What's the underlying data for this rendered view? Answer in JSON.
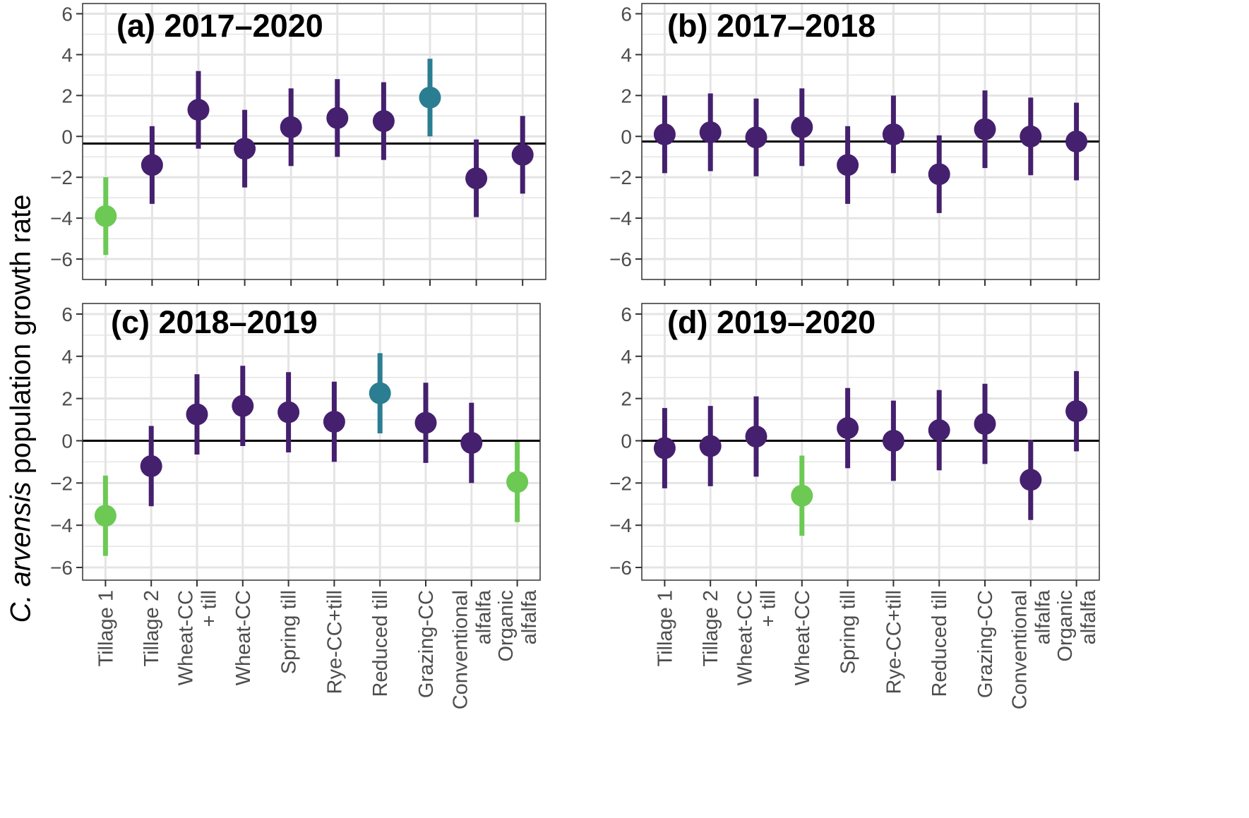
{
  "figure": {
    "ylabel_species": "C. arvensis",
    "ylabel_rest": " population growth rate"
  },
  "colors": {
    "dark_purple": "#45206e",
    "teal": "#2b7d92",
    "light_green": "#6cc954",
    "grid": "#e4e4e4",
    "frame": "#333333",
    "zero_line": "#000000"
  },
  "chart_data": [
    {
      "id": "a",
      "type": "scatter",
      "title": "(a) 2017–2020",
      "xlabel": "",
      "ylabel": "C. arvensis population growth rate",
      "ylim": [
        -7,
        6.5
      ],
      "yticks": [
        -6,
        -4,
        -2,
        0,
        2,
        4,
        6
      ],
      "show_x_labels": false,
      "reference_line": -0.35,
      "categories": [
        "Tillage 1",
        "Tillage 2",
        "Wheat-CC + till",
        "Wheat-CC",
        "Spring till",
        "Rye-CC+till",
        "Reduced till",
        "Grazing-CC",
        "Conventional alfalfa",
        "Organic alfalfa"
      ],
      "points": [
        {
          "category": "Tillage 1",
          "y": -3.9,
          "lo": -5.8,
          "hi": -2.0,
          "color": "light_green"
        },
        {
          "category": "Tillage 2",
          "y": -1.4,
          "lo": -3.3,
          "hi": 0.5,
          "color": "dark_purple"
        },
        {
          "category": "Wheat-CC + till",
          "y": 1.3,
          "lo": -0.6,
          "hi": 3.2,
          "color": "dark_purple"
        },
        {
          "category": "Wheat-CC",
          "y": -0.6,
          "lo": -2.5,
          "hi": 1.3,
          "color": "dark_purple"
        },
        {
          "category": "Spring till",
          "y": 0.45,
          "lo": -1.45,
          "hi": 2.35,
          "color": "dark_purple"
        },
        {
          "category": "Rye-CC+till",
          "y": 0.9,
          "lo": -1.0,
          "hi": 2.8,
          "color": "dark_purple"
        },
        {
          "category": "Reduced till",
          "y": 0.75,
          "lo": -1.15,
          "hi": 2.65,
          "color": "dark_purple"
        },
        {
          "category": "Grazing-CC",
          "y": 1.9,
          "lo": 0.0,
          "hi": 3.8,
          "color": "teal"
        },
        {
          "category": "Conventional alfalfa",
          "y": -2.05,
          "lo": -3.95,
          "hi": -0.15,
          "color": "dark_purple"
        },
        {
          "category": "Organic alfalfa",
          "y": -0.9,
          "lo": -2.8,
          "hi": 1.0,
          "color": "dark_purple"
        }
      ]
    },
    {
      "id": "b",
      "type": "scatter",
      "title": "(b) 2017–2018",
      "xlabel": "",
      "ylabel": "",
      "ylim": [
        -7,
        6.5
      ],
      "yticks": [
        -6,
        -4,
        -2,
        0,
        2,
        4,
        6
      ],
      "show_x_labels": false,
      "reference_line": -0.25,
      "categories": [
        "Tillage 1",
        "Tillage 2",
        "Wheat-CC + till",
        "Wheat-CC",
        "Spring till",
        "Rye-CC+till",
        "Reduced till",
        "Grazing-CC",
        "Conventional alfalfa",
        "Organic alfalfa"
      ],
      "points": [
        {
          "category": "Tillage 1",
          "y": 0.1,
          "lo": -1.8,
          "hi": 2.0,
          "color": "dark_purple"
        },
        {
          "category": "Tillage 2",
          "y": 0.2,
          "lo": -1.7,
          "hi": 2.1,
          "color": "dark_purple"
        },
        {
          "category": "Wheat-CC + till",
          "y": -0.05,
          "lo": -1.95,
          "hi": 1.85,
          "color": "dark_purple"
        },
        {
          "category": "Wheat-CC",
          "y": 0.45,
          "lo": -1.45,
          "hi": 2.35,
          "color": "dark_purple"
        },
        {
          "category": "Spring till",
          "y": -1.4,
          "lo": -3.3,
          "hi": 0.5,
          "color": "dark_purple"
        },
        {
          "category": "Rye-CC+till",
          "y": 0.1,
          "lo": -1.8,
          "hi": 2.0,
          "color": "dark_purple"
        },
        {
          "category": "Reduced till",
          "y": -1.85,
          "lo": -3.75,
          "hi": 0.05,
          "color": "dark_purple"
        },
        {
          "category": "Grazing-CC",
          "y": 0.35,
          "lo": -1.55,
          "hi": 2.25,
          "color": "dark_purple"
        },
        {
          "category": "Conventional alfalfa",
          "y": 0.0,
          "lo": -1.9,
          "hi": 1.9,
          "color": "dark_purple"
        },
        {
          "category": "Organic alfalfa",
          "y": -0.25,
          "lo": -2.15,
          "hi": 1.65,
          "color": "dark_purple"
        }
      ]
    },
    {
      "id": "c",
      "type": "scatter",
      "title": "(c) 2018–2019",
      "xlabel": "",
      "ylabel": "",
      "ylim": [
        -6.6,
        6.5
      ],
      "yticks": [
        -6,
        -4,
        -2,
        0,
        2,
        4,
        6
      ],
      "show_x_labels": true,
      "reference_line": 0,
      "categories": [
        "Tillage 1",
        "Tillage 2",
        "Wheat-CC + till",
        "Wheat-CC",
        "Spring till",
        "Rye-CC+till",
        "Reduced till",
        "Grazing-CC",
        "Conventional alfalfa",
        "Organic alfalfa"
      ],
      "tick_labels": [
        [
          "Tillage 1"
        ],
        [
          "Tillage 2"
        ],
        [
          "Wheat-CC",
          "+ till"
        ],
        [
          "Wheat-CC"
        ],
        [
          "Spring till"
        ],
        [
          "Rye-CC+till"
        ],
        [
          "Reduced till"
        ],
        [
          "Grazing-CC"
        ],
        [
          "Conventional",
          "alfalfa"
        ],
        [
          "Organic",
          "alfalfa"
        ]
      ],
      "points": [
        {
          "category": "Tillage 1",
          "y": -3.55,
          "lo": -5.45,
          "hi": -1.65,
          "color": "light_green"
        },
        {
          "category": "Tillage 2",
          "y": -1.2,
          "lo": -3.1,
          "hi": 0.7,
          "color": "dark_purple"
        },
        {
          "category": "Wheat-CC + till",
          "y": 1.25,
          "lo": -0.65,
          "hi": 3.15,
          "color": "dark_purple"
        },
        {
          "category": "Wheat-CC",
          "y": 1.65,
          "lo": -0.25,
          "hi": 3.55,
          "color": "dark_purple"
        },
        {
          "category": "Spring till",
          "y": 1.35,
          "lo": -0.55,
          "hi": 3.25,
          "color": "dark_purple"
        },
        {
          "category": "Rye-CC+till",
          "y": 0.9,
          "lo": -1.0,
          "hi": 2.8,
          "color": "dark_purple"
        },
        {
          "category": "Reduced till",
          "y": 2.25,
          "lo": 0.35,
          "hi": 4.15,
          "color": "teal"
        },
        {
          "category": "Grazing-CC",
          "y": 0.85,
          "lo": -1.05,
          "hi": 2.75,
          "color": "dark_purple"
        },
        {
          "category": "Conventional alfalfa",
          "y": -0.1,
          "lo": -2.0,
          "hi": 1.8,
          "color": "dark_purple"
        },
        {
          "category": "Organic alfalfa",
          "y": -1.95,
          "lo": -3.85,
          "hi": -0.05,
          "color": "light_green"
        }
      ]
    },
    {
      "id": "d",
      "type": "scatter",
      "title": "(d) 2019–2020",
      "xlabel": "",
      "ylabel": "",
      "ylim": [
        -6.6,
        6.5
      ],
      "yticks": [
        -6,
        -4,
        -2,
        0,
        2,
        4,
        6
      ],
      "show_x_labels": true,
      "reference_line": 0,
      "categories": [
        "Tillage 1",
        "Tillage 2",
        "Wheat-CC + till",
        "Wheat-CC",
        "Spring till",
        "Rye-CC+till",
        "Reduced till",
        "Grazing-CC",
        "Conventional alfalfa",
        "Organic alfalfa"
      ],
      "tick_labels": [
        [
          "Tillage 1"
        ],
        [
          "Tillage 2"
        ],
        [
          "Wheat-CC",
          "+ till"
        ],
        [
          "Wheat-CC"
        ],
        [
          "Spring till"
        ],
        [
          "Rye-CC+till"
        ],
        [
          "Reduced till"
        ],
        [
          "Grazing-CC"
        ],
        [
          "Conventional",
          "alfalfa"
        ],
        [
          "Organic",
          "alfalfa"
        ]
      ],
      "points": [
        {
          "category": "Tillage 1",
          "y": -0.35,
          "lo": -2.25,
          "hi": 1.55,
          "color": "dark_purple"
        },
        {
          "category": "Tillage 2",
          "y": -0.25,
          "lo": -2.15,
          "hi": 1.65,
          "color": "dark_purple"
        },
        {
          "category": "Wheat-CC + till",
          "y": 0.2,
          "lo": -1.7,
          "hi": 2.1,
          "color": "dark_purple"
        },
        {
          "category": "Wheat-CC",
          "y": -2.6,
          "lo": -4.5,
          "hi": -0.7,
          "color": "light_green"
        },
        {
          "category": "Spring till",
          "y": 0.6,
          "lo": -1.3,
          "hi": 2.5,
          "color": "dark_purple"
        },
        {
          "category": "Rye-CC+till",
          "y": 0.0,
          "lo": -1.9,
          "hi": 1.9,
          "color": "dark_purple"
        },
        {
          "category": "Reduced till",
          "y": 0.5,
          "lo": -1.4,
          "hi": 2.4,
          "color": "dark_purple"
        },
        {
          "category": "Grazing-CC",
          "y": 0.8,
          "lo": -1.1,
          "hi": 2.7,
          "color": "dark_purple"
        },
        {
          "category": "Conventional alfalfa",
          "y": -1.85,
          "lo": -3.75,
          "hi": 0.05,
          "color": "dark_purple"
        },
        {
          "category": "Organic alfalfa",
          "y": 1.4,
          "lo": -0.5,
          "hi": 3.3,
          "color": "dark_purple"
        }
      ]
    }
  ]
}
